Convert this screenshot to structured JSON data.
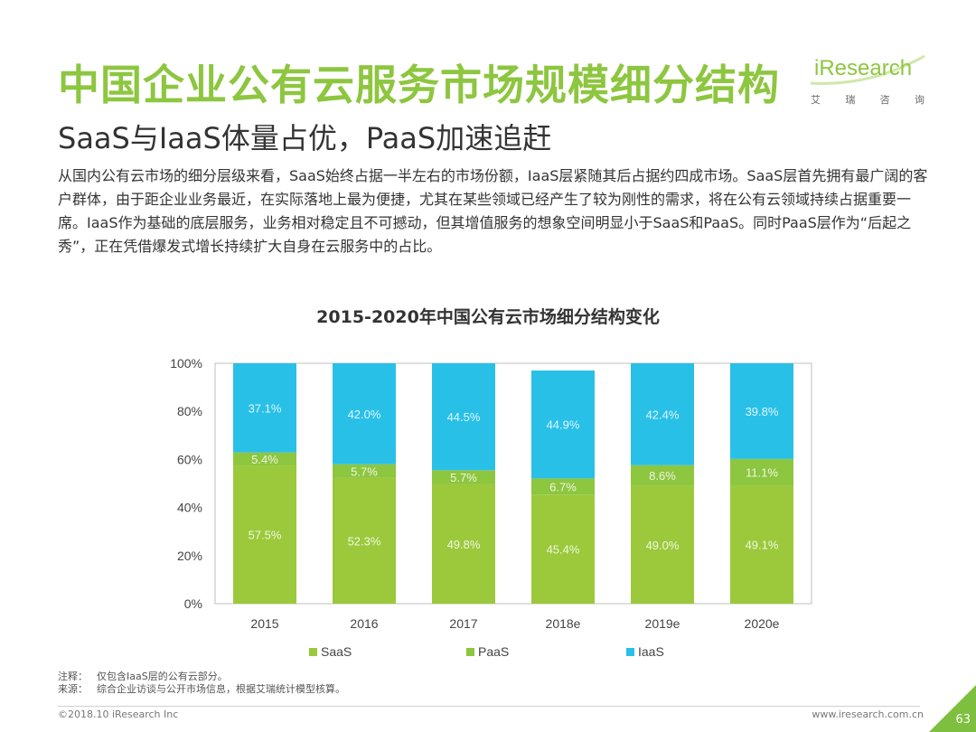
{
  "header": {
    "title": "中国企业公有云服务市场规模细分结构",
    "subtitle": "SaaS与IaaS体量占优，PaaS加速追赶",
    "logo_text": "iResearch",
    "logo_sub": [
      "艾",
      "瑞",
      "咨",
      "询"
    ]
  },
  "body_text": "从国内公有云市场的细分层级来看，SaaS始终占据一半左右的市场份额，IaaS层紧随其后占据约四成市场。SaaS层首先拥有最广阔的客户群体，由于距企业业务最近，在实际落地上最为便捷，尤其在某些领域已经产生了较为刚性的需求，将在公有云领域持续占据重要一席。IaaS作为基础的底层服务，业务相对稳定且不可撼动，但其增值服务的想象空间明显小于SaaS和PaaS。同时PaaS层作为“后起之秀”，正在凭借爆发式增长持续扩大自身在云服务中的占比。",
  "chart_data": {
    "type": "bar",
    "stacked": true,
    "title": "2015-2020年中国公有云市场细分结构变化",
    "categories": [
      "2015",
      "2016",
      "2017",
      "2018e",
      "2019e",
      "2020e"
    ],
    "series": [
      {
        "name": "SaaS",
        "values": [
          57.5,
          52.3,
          49.8,
          45.4,
          49.0,
          49.1
        ],
        "labels": [
          "57.5%",
          "52.3%",
          "49.8%",
          "45.4%",
          "49.0%",
          "49.1%"
        ],
        "color": "#9bc93b"
      },
      {
        "name": "PaaS",
        "values": [
          5.4,
          5.7,
          5.7,
          6.7,
          8.6,
          11.1
        ],
        "labels": [
          "5.4%",
          "5.7%",
          "5.7%",
          "6.7%",
          "8.6%",
          "11.1%"
        ],
        "color": "#8dc63f"
      },
      {
        "name": "IaaS",
        "values": [
          37.1,
          42.0,
          44.5,
          44.9,
          42.4,
          39.8
        ],
        "labels": [
          "37.1%",
          "42.0%",
          "44.5%",
          "44.9%",
          "42.4%",
          "39.8%"
        ],
        "color": "#29c0e8"
      }
    ],
    "yticks": [
      "0%",
      "20%",
      "40%",
      "60%",
      "80%",
      "100%"
    ],
    "ylim": [
      0,
      100
    ],
    "legend": [
      "SaaS",
      "PaaS",
      "IaaS"
    ],
    "legend_position": "bottom"
  },
  "notes": {
    "note_label": "注释：",
    "note_text": "仅包含IaaS层的公有云部分。",
    "source_label": "来源：",
    "source_text": "综合企业访谈与公开市场信息，根据艾瑞统计模型核算。"
  },
  "footer": {
    "copyright": "©2018.10 iResearch Inc",
    "website": "www.iresearch.com.cn",
    "page": "63"
  }
}
